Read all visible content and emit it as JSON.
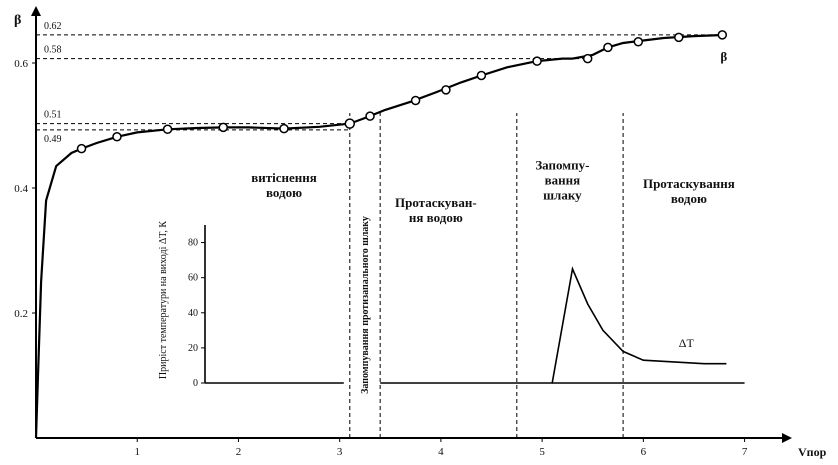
{
  "chart_data": {
    "type": "line",
    "ylabel": "β",
    "xlabel": "Vпор",
    "x_ticks": [
      1,
      2,
      3,
      4,
      5,
      6,
      7
    ],
    "y_ticks": [
      0.2,
      0.4,
      0.6
    ],
    "xlim": [
      0,
      7.35
    ],
    "ylim": [
      0,
      0.64
    ],
    "series": [
      {
        "name": "β",
        "x": [
          0.0,
          0.02,
          0.05,
          0.1,
          0.2,
          0.35,
          0.45,
          0.6,
          0.8,
          1.0,
          1.3,
          1.6,
          1.85,
          2.1,
          2.45,
          2.8,
          3.1,
          3.25,
          3.45,
          3.7,
          3.95,
          4.2,
          4.4,
          4.65,
          4.95,
          5.2,
          5.3,
          5.5,
          5.65,
          5.8,
          6.0,
          6.2,
          6.5,
          6.82
        ],
        "y": [
          0.0,
          0.1,
          0.25,
          0.38,
          0.435,
          0.456,
          0.463,
          0.472,
          0.482,
          0.489,
          0.494,
          0.496,
          0.497,
          0.497,
          0.495,
          0.498,
          0.503,
          0.512,
          0.525,
          0.538,
          0.553,
          0.569,
          0.58,
          0.593,
          0.603,
          0.607,
          0.607,
          0.613,
          0.625,
          0.632,
          0.636,
          0.64,
          0.643,
          0.645
        ]
      }
    ],
    "markers": {
      "x": [
        0.45,
        0.8,
        1.3,
        1.85,
        2.45,
        3.1,
        3.3,
        3.75,
        4.05,
        4.4,
        4.95,
        5.45,
        5.65,
        5.95,
        6.35,
        6.78
      ],
      "y": [
        0.463,
        0.482,
        0.494,
        0.497,
        0.495,
        0.503,
        0.515,
        0.54,
        0.557,
        0.58,
        0.603,
        0.607,
        0.625,
        0.634,
        0.641,
        0.645
      ],
      "open": [
        5
      ]
    },
    "ref_levels": [
      {
        "label": "0.62",
        "y": 0.645,
        "x_end": 6.78
      },
      {
        "label": "0.58",
        "y": 0.607,
        "x_end": 5.45
      },
      {
        "label": "0.51",
        "y": 0.503,
        "x_end": 3.1
      },
      {
        "label": "0.49",
        "y": 0.493,
        "x_end": 3.1
      }
    ],
    "stage_lines_x": [
      3.1,
      3.4,
      4.75,
      5.8
    ],
    "curve_label": "β",
    "inset": {
      "ylabel": "Приріст температури на виході ΔТ, К",
      "y_ticks": [
        0,
        20,
        40,
        60,
        80
      ],
      "ylim": [
        0,
        90
      ],
      "curve_label": "ΔT",
      "dt_x": [
        3.4,
        4.8,
        5.1,
        5.3,
        5.45,
        5.6,
        5.8,
        6.0,
        6.3,
        6.6,
        6.82
      ],
      "dt_y": [
        0,
        0,
        0,
        65,
        45,
        30,
        18,
        13,
        12,
        11,
        11
      ]
    },
    "regions": [
      {
        "label_lines": [
          "витіснення",
          "водою"
        ],
        "x": 2.45,
        "y": 0.41
      },
      {
        "label_lines": [
          "Протаскуван-",
          "ня водою"
        ],
        "x": 3.95,
        "y": 0.37
      },
      {
        "label_lines": [
          "Запомпу-",
          "вання",
          "шлаку"
        ],
        "x": 5.2,
        "y": 0.43
      },
      {
        "label_lines": [
          "Протаскування",
          "водою"
        ],
        "x": 6.45,
        "y": 0.4
      }
    ],
    "vertical_band_label": "Запомпування протизапального шлаку"
  }
}
